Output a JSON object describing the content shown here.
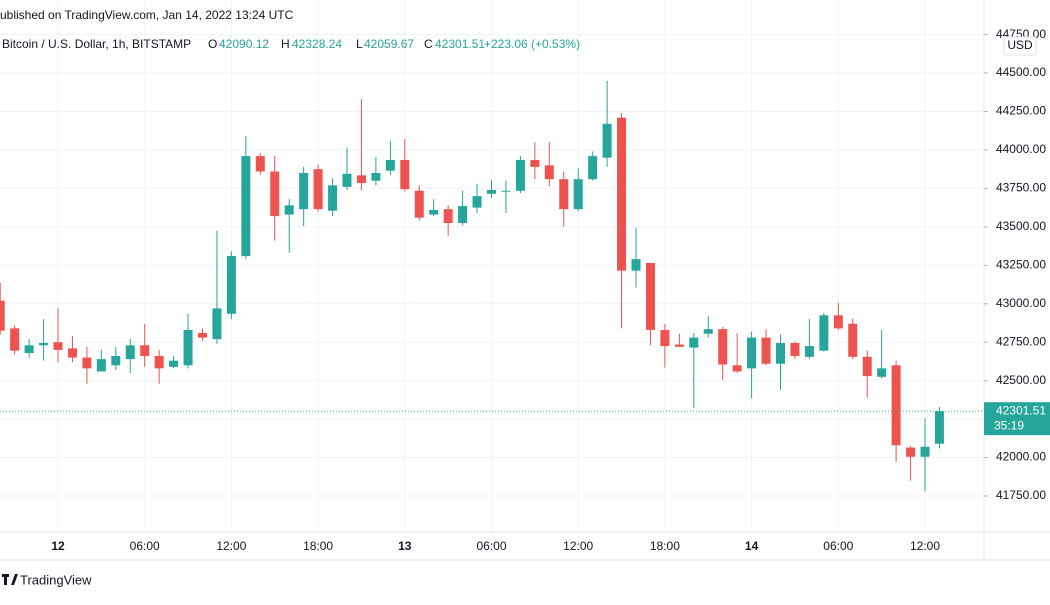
{
  "header": {
    "published": "ublished on TradingView.com, Jan 14, 2022 13:24 UTC",
    "symbol": "Bitcoin / U.S. Dollar, 1h, BITSTAMP",
    "ohlc_labels": [
      "O",
      "H",
      "L",
      "C"
    ],
    "change": "+223.06 (+0.53%)"
  },
  "chart_data": {
    "type": "candlestick",
    "unit": "USD",
    "countdown": "35:19",
    "up_color": "#26a69a",
    "down_color": "#ef5350",
    "grid": true,
    "categories": [
      null,
      null,
      null,
      null,
      "12",
      null,
      null,
      null,
      null,
      null,
      "06:00",
      null,
      null,
      null,
      null,
      null,
      "12:00",
      null,
      null,
      null,
      null,
      null,
      "18:00",
      null,
      null,
      null,
      null,
      null,
      "13",
      null,
      null,
      null,
      null,
      null,
      "06:00",
      null,
      null,
      null,
      null,
      null,
      "12:00",
      null,
      null,
      null,
      null,
      null,
      "18:00",
      null,
      null,
      null,
      null,
      null,
      "14",
      null,
      null,
      null,
      null,
      null,
      "06:00",
      null,
      null,
      null,
      null,
      null,
      "12:00",
      null
    ],
    "open": [
      43020,
      42840,
      42680,
      42730,
      42750,
      42710,
      42650,
      42560,
      42600,
      42640,
      42730,
      42660,
      42590,
      42600,
      42810,
      42770,
      42935,
      43310,
      43960,
      43860,
      43580,
      43615,
      43875,
      43605,
      43760,
      43835,
      43800,
      43865,
      43935,
      43735,
      43580,
      43615,
      43525,
      43625,
      43715,
      43730,
      43735,
      43935,
      43900,
      43810,
      43615,
      43810,
      43950,
      44210,
      43215,
      43265,
      42830,
      42735,
      42715,
      42805,
      42835,
      42600,
      42580,
      42780,
      42610,
      42745,
      42655,
      42695,
      42925,
      42870,
      42655,
      42525,
      42600,
      42065,
      42005,
      42090.12
    ],
    "high": [
      43135,
      42860,
      42770,
      42900,
      42970,
      42790,
      42720,
      42700,
      42720,
      42770,
      42870,
      42700,
      42660,
      42935,
      42840,
      43475,
      43340,
      44090,
      43980,
      43960,
      43680,
      43890,
      43905,
      43815,
      44015,
      44330,
      43955,
      44060,
      44070,
      43770,
      43680,
      43640,
      43735,
      43780,
      43805,
      43800,
      43960,
      44050,
      44050,
      43860,
      43880,
      43990,
      44450,
      44240,
      43495,
      43265,
      42870,
      42805,
      42810,
      42920,
      42850,
      42810,
      42820,
      42835,
      42800,
      42755,
      42900,
      42940,
      43005,
      42905,
      42695,
      42830,
      42630,
      42075,
      42255,
      42328.24
    ],
    "low": [
      42800,
      42670,
      42650,
      42630,
      42620,
      42620,
      42480,
      42580,
      42570,
      42550,
      42590,
      42480,
      42580,
      42580,
      42760,
      42740,
      42900,
      43290,
      43840,
      43410,
      43330,
      43505,
      43600,
      43570,
      43740,
      43740,
      43770,
      43835,
      43730,
      43540,
      43570,
      43440,
      43510,
      43590,
      43690,
      43590,
      43720,
      43810,
      43765,
      43500,
      43600,
      43800,
      43890,
      42840,
      43105,
      42730,
      42585,
      42720,
      42320,
      42780,
      42505,
      42550,
      42385,
      42600,
      42440,
      42640,
      42640,
      42690,
      42830,
      42640,
      42390,
      42515,
      41970,
      41850,
      41780,
      42059.67
    ],
    "close": [
      42825,
      42695,
      42730,
      42745,
      42700,
      42650,
      42580,
      42640,
      42660,
      42730,
      42660,
      42580,
      42630,
      42830,
      42780,
      42970,
      43310,
      43960,
      43860,
      43570,
      43640,
      43850,
      43615,
      43770,
      43845,
      43785,
      43850,
      43935,
      43745,
      43560,
      43610,
      43525,
      43635,
      43700,
      43740,
      43735,
      43935,
      43890,
      43810,
      43615,
      43810,
      43960,
      44170,
      43215,
      43290,
      42830,
      42725,
      42720,
      42780,
      42835,
      42605,
      42560,
      42780,
      42610,
      42745,
      42660,
      42725,
      42925,
      42840,
      42655,
      42530,
      42580,
      42080,
      42005,
      42070,
      42301.51
    ],
    "ylim": [
      41516,
      44975
    ],
    "yticks": [
      {
        "value": 41750,
        "label": "41750.00"
      },
      {
        "value": 42000,
        "label": "42000.00"
      },
      {
        "value": 42250,
        "label": "42250.00"
      },
      {
        "value": 42500,
        "label": "42500.00"
      },
      {
        "value": 42750,
        "label": "42750.00"
      },
      {
        "value": 43000,
        "label": "43000.00"
      },
      {
        "value": 43250,
        "label": "43250.00"
      },
      {
        "value": 43500,
        "label": "43500.00"
      },
      {
        "value": 43750,
        "label": "43750.00"
      },
      {
        "value": 44000,
        "label": "44000.00"
      },
      {
        "value": 44250,
        "label": "44250.00"
      },
      {
        "value": 44500,
        "label": "44500.00"
      },
      {
        "value": 44750,
        "label": "44750.00"
      }
    ]
  },
  "footer": {
    "brand": "TradingView"
  }
}
